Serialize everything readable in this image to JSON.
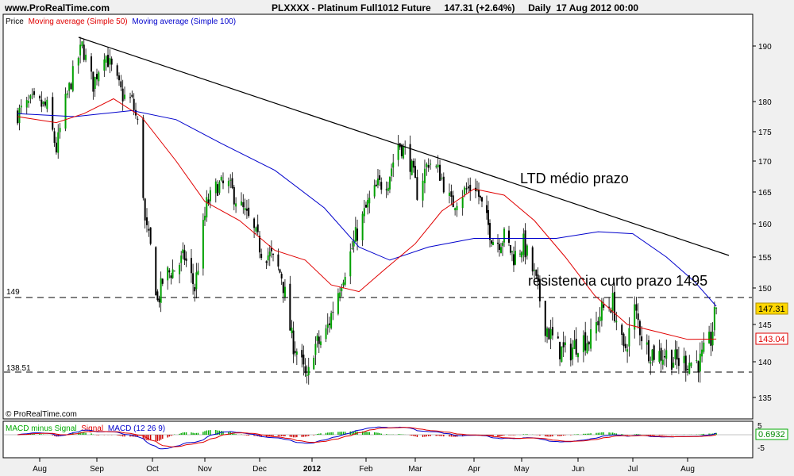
{
  "header": {
    "site": "www.ProRealTime.com",
    "title": "PLXXXX - Platinum Full1012 Future     147.31 (+2.64%)     Daily  17 Aug 2012 00:00"
  },
  "legend": {
    "price": "Price",
    "ma50": "Moving average (Simple 50)",
    "ma100": "Moving average (Simple 100)",
    "ma50_color": "#e00000",
    "ma100_color": "#0000cc"
  },
  "copyright": "© ProRealTime.com",
  "annotations": {
    "ltd": "LTD médio prazo",
    "resist": "resistencia curto prazo 1495"
  },
  "levels": {
    "upper_label": "149",
    "upper": 149,
    "lower_label": "138.51",
    "lower": 138.51
  },
  "badges": {
    "price": "147.31",
    "ma": "143.04",
    "macd": "0.6932"
  },
  "macd": {
    "legend_hist": "MACD minus Signal",
    "legend_signal": "Signal",
    "legend_macd": "MACD (12 26 9)",
    "ticks": [
      "5",
      "-5"
    ],
    "hist_color": "#00aa00",
    "hist_neg_color": "#cc0000"
  },
  "chart_data": {
    "type": "candlestick",
    "ylim": [
      133,
      193
    ],
    "y_ticks": [
      "135",
      "140",
      "145",
      "150",
      "155",
      "160",
      "165",
      "170",
      "175",
      "180",
      "190"
    ],
    "x_ticks": [
      "Aug",
      "Sep",
      "Oct",
      "Nov",
      "Dec",
      "2012",
      "Feb",
      "Mar",
      "Apr",
      "May",
      "Jun",
      "Jul",
      "Aug"
    ],
    "trendline": {
      "from": [
        "Aug 22 2011",
        191.5
      ],
      "to": [
        "Aug 2012",
        155.5
      ]
    },
    "close_path": [
      [
        "2011-07-20",
        178
      ],
      [
        "2011-07-28",
        180
      ],
      [
        "2011-08-05",
        179
      ],
      [
        "2011-08-10",
        172
      ],
      [
        "2011-08-15",
        180
      ],
      [
        "2011-08-20",
        186
      ],
      [
        "2011-08-24",
        190
      ],
      [
        "2011-08-30",
        183
      ],
      [
        "2011-09-05",
        189
      ],
      [
        "2011-09-10",
        185
      ],
      [
        "2011-09-15",
        181
      ],
      [
        "2011-09-20",
        180
      ],
      [
        "2011-09-24",
        175
      ],
      [
        "2011-09-27",
        160
      ],
      [
        "2011-10-01",
        155
      ],
      [
        "2011-10-04",
        148
      ],
      [
        "2011-10-08",
        152
      ],
      [
        "2011-10-14",
        153
      ],
      [
        "2011-10-20",
        155
      ],
      [
        "2011-10-26",
        150
      ],
      [
        "2011-11-02",
        163
      ],
      [
        "2011-11-08",
        166
      ],
      [
        "2011-11-14",
        166
      ],
      [
        "2011-11-20",
        163
      ],
      [
        "2011-11-26",
        160
      ],
      [
        "2011-12-02",
        156
      ],
      [
        "2011-12-08",
        155
      ],
      [
        "2011-12-14",
        152
      ],
      [
        "2011-12-20",
        143
      ],
      [
        "2011-12-24",
        141
      ],
      [
        "2011-12-29",
        137
      ],
      [
        "2012-01-02",
        142
      ],
      [
        "2012-01-08",
        143
      ],
      [
        "2012-01-14",
        148
      ],
      [
        "2012-01-20",
        153
      ],
      [
        "2012-01-26",
        158
      ],
      [
        "2012-02-02",
        163
      ],
      [
        "2012-02-08",
        166
      ],
      [
        "2012-02-14",
        167
      ],
      [
        "2012-02-20",
        173
      ],
      [
        "2012-02-26",
        171
      ],
      [
        "2012-03-02",
        165
      ],
      [
        "2012-03-08",
        170
      ],
      [
        "2012-03-14",
        168
      ],
      [
        "2012-03-20",
        163
      ],
      [
        "2012-03-26",
        165
      ],
      [
        "2012-04-02",
        166
      ],
      [
        "2012-04-08",
        161
      ],
      [
        "2012-04-14",
        157
      ],
      [
        "2012-04-20",
        158
      ],
      [
        "2012-04-26",
        155
      ],
      [
        "2012-05-02",
        157
      ],
      [
        "2012-05-08",
        152
      ],
      [
        "2012-05-14",
        145
      ],
      [
        "2012-05-20",
        142
      ],
      [
        "2012-05-26",
        141
      ],
      [
        "2012-06-02",
        143
      ],
      [
        "2012-06-08",
        143
      ],
      [
        "2012-06-14",
        147
      ],
      [
        "2012-06-20",
        148
      ],
      [
        "2012-06-26",
        141
      ],
      [
        "2012-07-02",
        147
      ],
      [
        "2012-07-08",
        142
      ],
      [
        "2012-07-14",
        141
      ],
      [
        "2012-07-20",
        141
      ],
      [
        "2012-07-26",
        140
      ],
      [
        "2012-08-02",
        140
      ],
      [
        "2012-08-08",
        140
      ],
      [
        "2012-08-14",
        143
      ],
      [
        "2012-08-17",
        147.31
      ]
    ],
    "ma50_path": [
      [
        "2011-07-20",
        177.5
      ],
      [
        "2011-08-10",
        176.5
      ],
      [
        "2011-08-25",
        178
      ],
      [
        "2011-09-10",
        180.5
      ],
      [
        "2011-09-25",
        177.5
      ],
      [
        "2011-10-15",
        170
      ],
      [
        "2011-11-01",
        163.5
      ],
      [
        "2011-11-20",
        160.5
      ],
      [
        "2011-12-10",
        156
      ],
      [
        "2011-12-28",
        154.5
      ],
      [
        "2012-01-12",
        150.5
      ],
      [
        "2012-01-28",
        149.5
      ],
      [
        "2012-02-12",
        153
      ],
      [
        "2012-03-01",
        157
      ],
      [
        "2012-03-15",
        162
      ],
      [
        "2012-04-01",
        165.5
      ],
      [
        "2012-04-20",
        164.5
      ],
      [
        "2012-05-08",
        160.5
      ],
      [
        "2012-05-25",
        155
      ],
      [
        "2012-06-10",
        149
      ],
      [
        "2012-06-28",
        145
      ],
      [
        "2012-07-15",
        144
      ],
      [
        "2012-08-01",
        143
      ],
      [
        "2012-08-17",
        143.04
      ]
    ],
    "ma100_path": [
      [
        "2011-07-20",
        178
      ],
      [
        "2011-08-20",
        177.5
      ],
      [
        "2011-09-20",
        178.5
      ],
      [
        "2011-10-15",
        177
      ],
      [
        "2011-11-10",
        173
      ],
      [
        "2011-12-10",
        168.5
      ],
      [
        "2012-01-08",
        162.5
      ],
      [
        "2012-01-28",
        156.5
      ],
      [
        "2012-02-15",
        154.5
      ],
      [
        "2012-03-08",
        156.5
      ],
      [
        "2012-04-01",
        157.8
      ],
      [
        "2012-04-25",
        157.8
      ],
      [
        "2012-05-20",
        157.8
      ],
      [
        "2012-06-12",
        158.8
      ],
      [
        "2012-07-01",
        158.5
      ],
      [
        "2012-07-20",
        155
      ],
      [
        "2012-08-05",
        151
      ],
      [
        "2012-08-17",
        147.5
      ]
    ]
  }
}
